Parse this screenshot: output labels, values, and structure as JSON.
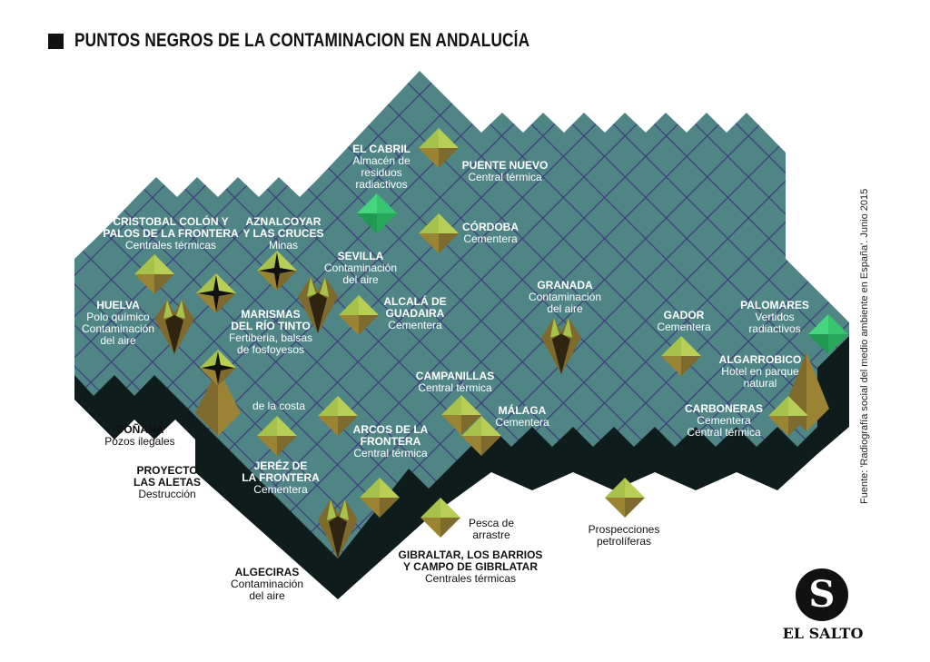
{
  "title": "PUNTOS NEGROS DE LA CONTAMINACION EN ANDALUCÍA",
  "colors": {
    "land": "#4f8585",
    "grid": "#3e3f7c",
    "shadow": "#0f1c1c",
    "pyramid_light": "#a6c24a",
    "pyramid_dark": "#7d6a2c",
    "radioactive": "#2fbf6a"
  },
  "locations": [
    {
      "name": "EL CABRIL",
      "desc": [
        "Almacén de",
        "residuos",
        "radiactivos"
      ]
    },
    {
      "name": "PUENTE NUEVO",
      "desc": [
        "Central térmica"
      ]
    },
    {
      "name": "CRISTOBAL COLÓN Y PALOS DE LA FRONTERA",
      "lines": [
        "CRISTOBAL COLÓN Y",
        "PALOS DE LA FRONTERA"
      ],
      "desc": [
        "Centrales térmicas"
      ]
    },
    {
      "name": "AZNALCOYAR Y LAS CRUCES",
      "lines": [
        "AZNALCOYAR",
        "Y LAS CRUCES"
      ],
      "desc": [
        "Minas"
      ]
    },
    {
      "name": "CÓRDOBA",
      "desc": [
        "Cementera"
      ]
    },
    {
      "name": "SEVILLA",
      "desc": [
        "Contaminación",
        "del aire"
      ]
    },
    {
      "name": "HUELVA",
      "desc": [
        "Polo químico",
        "Contaminación",
        "del aire"
      ]
    },
    {
      "name": "MARISMAS DEL RÍO TINTO",
      "lines": [
        "MARISMAS",
        "DEL RÍO TINTO"
      ],
      "desc": [
        "Fertiberia, balsas",
        "de fosfoyesos"
      ]
    },
    {
      "name": "ALCALÁ DE GUADAIRA",
      "lines": [
        "ALCALÁ DE",
        "GUADAIRA"
      ],
      "desc": [
        "Cementera"
      ]
    },
    {
      "name": "GRANADA",
      "desc": [
        "Contaminación",
        "del aire"
      ]
    },
    {
      "name": "GADOR",
      "desc": [
        "Cementera"
      ]
    },
    {
      "name": "PALOMARES",
      "desc": [
        "Vertidos",
        "radiactivos"
      ]
    },
    {
      "name": "ALGARROBICO",
      "desc": [
        "Hotel en parque",
        "natural"
      ]
    },
    {
      "name": "CAMPANILLAS",
      "desc": [
        "Central térmica"
      ]
    },
    {
      "name": "MÁLAGA",
      "desc": [
        "Cementera"
      ]
    },
    {
      "name": "CARBONERAS",
      "desc": [
        "Cementera",
        "Central térmica"
      ]
    },
    {
      "name": "",
      "desc": [
        "de la costa"
      ]
    },
    {
      "name": "DOÑANA",
      "desc": [
        "Pozos ilegales"
      ]
    },
    {
      "name": "ARCOS DE LA FRONTERA",
      "lines": [
        "ARCOS DE LA",
        "FRONTERA"
      ],
      "desc": [
        "Central térmica"
      ]
    },
    {
      "name": "PROYECTO LAS ALETAS",
      "lines": [
        "PROYECTO",
        "LAS ALETAS"
      ],
      "desc": [
        "Destrucción"
      ]
    },
    {
      "name": "JERÉZ DE LA FRONTERA",
      "lines": [
        "JERÉZ DE",
        "LA FRONTERA"
      ],
      "desc": [
        "Cementera"
      ]
    },
    {
      "name": "",
      "desc": [
        "Pesca de",
        "arrastre"
      ]
    },
    {
      "name": "",
      "desc": [
        "Prospecciones",
        "petrolíferas"
      ]
    },
    {
      "name": "GIBRALTAR, LOS BARRIOS Y CAMPO DE GIBRLATAR",
      "lines": [
        "GIBRALTAR, LOS BARRIOS",
        "Y CAMPO DE GIBRLATAR"
      ],
      "desc": [
        "Centrales térmicas"
      ]
    },
    {
      "name": "ALGECIRAS",
      "desc": [
        "Contaminación",
        "del aire"
      ]
    }
  ],
  "source": "Fuente: 'Radiografía social del medio ambiente en España'. Junio 2015",
  "logo": {
    "letter": "S",
    "name": "EL SALTO"
  }
}
